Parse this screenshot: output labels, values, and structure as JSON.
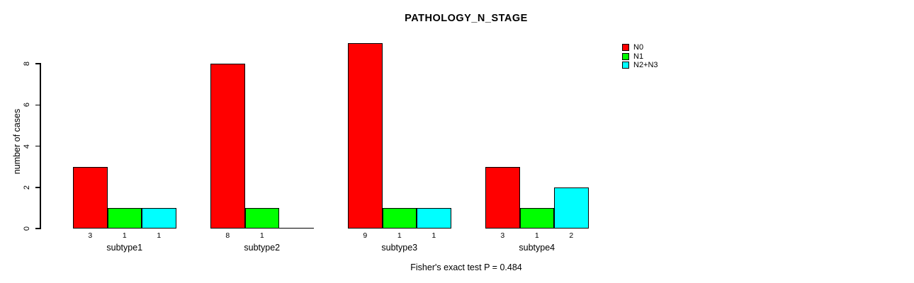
{
  "chart_data": {
    "type": "bar",
    "title": "PATHOLOGY_N_STAGE",
    "ylabel": "number of cases",
    "xlabel": "",
    "footer": "Fisher's exact test P = 0.484",
    "categories": [
      "subtype1",
      "subtype2",
      "subtype3",
      "subtype4"
    ],
    "series": [
      {
        "name": "N0",
        "color": "#ff0000",
        "values": [
          3,
          8,
          9,
          3
        ]
      },
      {
        "name": "N1",
        "color": "#00ff00",
        "values": [
          1,
          1,
          1,
          1
        ]
      },
      {
        "name": "N2+N3",
        "color": "#00ffff",
        "values": [
          1,
          0,
          1,
          2
        ]
      }
    ],
    "bar_value_labels": [
      [
        "3",
        "1",
        "1"
      ],
      [
        "8",
        "1",
        ""
      ],
      [
        "9",
        "1",
        "1"
      ],
      [
        "3",
        "1",
        "2"
      ]
    ],
    "yticks": [
      "0",
      "2",
      "4",
      "6",
      "8"
    ],
    "ylim": [
      0,
      9
    ],
    "grid": false,
    "legend_position": "top-right"
  },
  "colors": {
    "background": "#ffffff",
    "axis": "#000000",
    "text": "#000000"
  }
}
